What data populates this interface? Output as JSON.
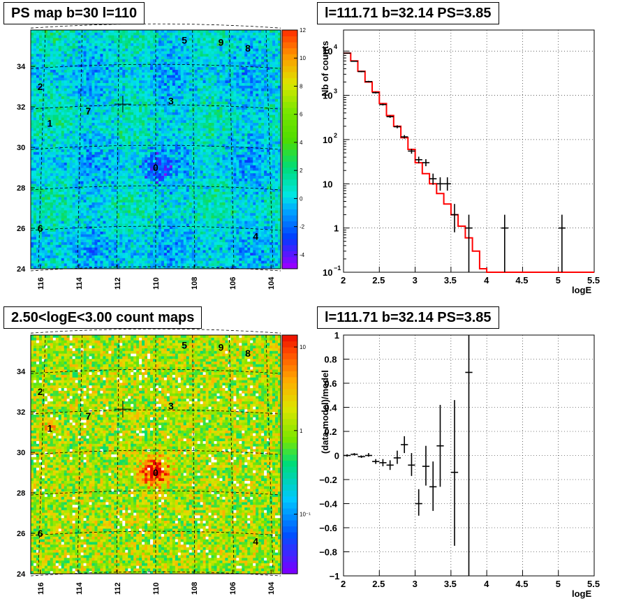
{
  "panels": {
    "tl_title": "PS map b=30 l=110",
    "tr_title": "l=111.71 b=32.14 PS=3.85",
    "bl_title": "2.50<logE<3.00 count maps",
    "br_title": "l=111.71 b=32.14 PS=3.85"
  },
  "colors": {
    "frame": "#000000",
    "grid": "#000000",
    "model_line": "#ff0000",
    "data_points": "#000000"
  },
  "chart_data": [
    {
      "type": "heatmap",
      "id": "ps_map",
      "title": "PS map b=30 l=110",
      "x_ticks": [
        "116",
        "114",
        "112",
        "110",
        "108",
        "106",
        "104"
      ],
      "y_ticks": [
        "24",
        "26",
        "28",
        "30",
        "32",
        "34"
      ],
      "xlim": [
        116.5,
        103.5
      ],
      "ylim": [
        24,
        35.8
      ],
      "colorbar": {
        "ticks": [
          "-4",
          "-2",
          "0",
          "2",
          "4",
          "6",
          "8",
          "10",
          "12"
        ],
        "range": [
          -5,
          12
        ],
        "scale": "linear"
      },
      "source_labels": [
        {
          "text": "0",
          "l": 110.0,
          "b": 29.0
        },
        {
          "text": "1",
          "l": 115.5,
          "b": 31.2
        },
        {
          "text": "2",
          "l": 116.0,
          "b": 33.0
        },
        {
          "text": "3",
          "l": 109.2,
          "b": 32.3
        },
        {
          "text": "4",
          "l": 104.8,
          "b": 25.6
        },
        {
          "text": "5",
          "l": 108.5,
          "b": 35.3
        },
        {
          "text": "6",
          "l": 116.0,
          "b": 26.0
        },
        {
          "text": "7",
          "l": 113.5,
          "b": 31.8
        },
        {
          "text": "8",
          "l": 105.2,
          "b": 34.9
        },
        {
          "text": "9",
          "l": 106.6,
          "b": 35.2
        }
      ],
      "marker": {
        "l": 111.71,
        "b": 32.14
      }
    },
    {
      "type": "line",
      "id": "counts_spectrum",
      "title": "l=111.71 b=32.14 PS=3.85",
      "xlabel": "logE",
      "ylabel": "Nb of counts",
      "xlim": [
        2,
        5.5
      ],
      "ylim": [
        0.1,
        30000
      ],
      "yscale": "log",
      "x_ticks": [
        "2",
        "2.5",
        "3",
        "3.5",
        "4",
        "4.5",
        "5",
        "5.5"
      ],
      "y_ticks": [
        {
          "base": "10",
          "exp": "−1"
        },
        {
          "base": "1",
          "exp": ""
        },
        {
          "base": "10",
          "exp": ""
        },
        {
          "base": "10",
          "exp": "2"
        },
        {
          "base": "10",
          "exp": "3"
        },
        {
          "base": "10",
          "exp": "4"
        }
      ],
      "grid": true,
      "series": [
        {
          "kind": "step",
          "x_edges": [
            2.0,
            2.1,
            2.2,
            2.3,
            2.4,
            2.5,
            2.6,
            2.7,
            2.8,
            2.9,
            3.0,
            3.1,
            3.2,
            3.3,
            3.4,
            3.5,
            3.6,
            3.7,
            3.8,
            3.9,
            4.0,
            4.1,
            4.2,
            4.3,
            4.4,
            4.5,
            4.6,
            4.7,
            4.8,
            4.9,
            5.0,
            5.1,
            5.2,
            5.3,
            5.4,
            5.5
          ],
          "y": [
            9000,
            6000,
            3500,
            2000,
            1200,
            650,
            350,
            200,
            110,
            60,
            30,
            17,
            10,
            6,
            3.5,
            2,
            1.1,
            0.6,
            0.3,
            0.12,
            0.1,
            0.1,
            0.1,
            0.1,
            0.1,
            0.1,
            0.1,
            0.1,
            0.1,
            0.1,
            0.1,
            0.1,
            0.1,
            0.1,
            0.1
          ]
        },
        {
          "kind": "points",
          "points": [
            {
              "x": 2.05,
              "y": 9000,
              "lo": 8800,
              "hi": 9200
            },
            {
              "x": 2.15,
              "y": 5900,
              "lo": 5800,
              "hi": 6050
            },
            {
              "x": 2.25,
              "y": 3450,
              "lo": 3350,
              "hi": 3550
            },
            {
              "x": 2.35,
              "y": 2050,
              "lo": 1980,
              "hi": 2130
            },
            {
              "x": 2.45,
              "y": 1150,
              "lo": 1100,
              "hi": 1200
            },
            {
              "x": 2.55,
              "y": 620,
              "lo": 590,
              "hi": 650
            },
            {
              "x": 2.65,
              "y": 330,
              "lo": 310,
              "hi": 350
            },
            {
              "x": 2.75,
              "y": 195,
              "lo": 180,
              "hi": 210
            },
            {
              "x": 2.85,
              "y": 115,
              "lo": 105,
              "hi": 126
            },
            {
              "x": 2.95,
              "y": 55,
              "lo": 48,
              "hi": 62
            },
            {
              "x": 3.05,
              "y": 35,
              "lo": 29,
              "hi": 41
            },
            {
              "x": 3.15,
              "y": 30,
              "lo": 25,
              "hi": 36
            },
            {
              "x": 3.25,
              "y": 13,
              "lo": 9.5,
              "hi": 17
            },
            {
              "x": 3.35,
              "y": 10,
              "lo": 7,
              "hi": 14
            },
            {
              "x": 3.45,
              "y": 10,
              "lo": 7,
              "hi": 14
            },
            {
              "x": 3.55,
              "y": 2,
              "lo": 0.8,
              "hi": 3.5
            },
            {
              "x": 3.75,
              "y": 1,
              "lo": 0.1,
              "hi": 2
            },
            {
              "x": 4.25,
              "y": 1,
              "lo": 0.1,
              "hi": 2
            },
            {
              "x": 5.05,
              "y": 1,
              "lo": 0.1,
              "hi": 2
            }
          ]
        }
      ]
    },
    {
      "type": "heatmap",
      "id": "count_map",
      "title": "2.50<logE<3.00 count maps",
      "x_ticks": [
        "116",
        "114",
        "112",
        "110",
        "108",
        "106",
        "104"
      ],
      "y_ticks": [
        "24",
        "26",
        "28",
        "30",
        "32",
        "34"
      ],
      "xlim": [
        116.5,
        103.5
      ],
      "ylim": [
        24,
        35.8
      ],
      "colorbar": {
        "ticks": [
          "1",
          "10",
          "10⁻¹"
        ],
        "scale": "log"
      },
      "source_labels": [
        {
          "text": "0",
          "l": 110.0,
          "b": 29.0
        },
        {
          "text": "1",
          "l": 115.5,
          "b": 31.2
        },
        {
          "text": "2",
          "l": 116.0,
          "b": 33.0
        },
        {
          "text": "3",
          "l": 109.2,
          "b": 32.3
        },
        {
          "text": "4",
          "l": 104.8,
          "b": 25.6
        },
        {
          "text": "5",
          "l": 108.5,
          "b": 35.3
        },
        {
          "text": "6",
          "l": 116.0,
          "b": 26.0
        },
        {
          "text": "7",
          "l": 113.5,
          "b": 31.8
        },
        {
          "text": "8",
          "l": 105.2,
          "b": 34.9
        },
        {
          "text": "9",
          "l": 106.6,
          "b": 35.2
        }
      ],
      "marker": {
        "l": 111.71,
        "b": 32.14
      }
    },
    {
      "type": "scatter",
      "id": "residuals",
      "title": "l=111.71 b=32.14 PS=3.85",
      "xlabel": "logE",
      "ylabel": "(data-model)/model",
      "xlim": [
        2,
        5.5
      ],
      "ylim": [
        -1,
        1
      ],
      "x_ticks": [
        "2",
        "2.5",
        "3",
        "3.5",
        "4",
        "4.5",
        "5",
        "5.5"
      ],
      "y_ticks": [
        "−1",
        "−0.8",
        "−0.6",
        "−0.4",
        "−0.2",
        "0",
        "0.2",
        "0.4",
        "0.6",
        "0.8",
        "1"
      ],
      "grid": true,
      "points": [
        {
          "x": 2.05,
          "y": 0.0,
          "lo": -0.01,
          "hi": 0.01
        },
        {
          "x": 2.15,
          "y": 0.01,
          "lo": 0.0,
          "hi": 0.02
        },
        {
          "x": 2.25,
          "y": -0.01,
          "lo": -0.02,
          "hi": 0.0
        },
        {
          "x": 2.35,
          "y": 0.0,
          "lo": -0.01,
          "hi": 0.02
        },
        {
          "x": 2.45,
          "y": -0.05,
          "lo": -0.07,
          "hi": -0.03
        },
        {
          "x": 2.55,
          "y": -0.06,
          "lo": -0.09,
          "hi": -0.03
        },
        {
          "x": 2.65,
          "y": -0.08,
          "lo": -0.12,
          "hi": -0.04
        },
        {
          "x": 2.75,
          "y": -0.02,
          "lo": -0.07,
          "hi": 0.04
        },
        {
          "x": 2.85,
          "y": 0.09,
          "lo": 0.02,
          "hi": 0.16
        },
        {
          "x": 2.95,
          "y": -0.08,
          "lo": -0.17,
          "hi": 0.02
        },
        {
          "x": 3.05,
          "y": -0.4,
          "lo": -0.5,
          "hi": -0.28
        },
        {
          "x": 3.15,
          "y": -0.09,
          "lo": -0.25,
          "hi": 0.08
        },
        {
          "x": 3.25,
          "y": -0.26,
          "lo": -0.46,
          "hi": -0.05
        },
        {
          "x": 3.35,
          "y": 0.08,
          "lo": -0.26,
          "hi": 0.42
        },
        {
          "x": 3.55,
          "y": -0.14,
          "lo": -0.75,
          "hi": 0.46
        },
        {
          "x": 3.75,
          "y": 0.69,
          "lo": -1.0,
          "hi": 1.0
        }
      ]
    }
  ]
}
